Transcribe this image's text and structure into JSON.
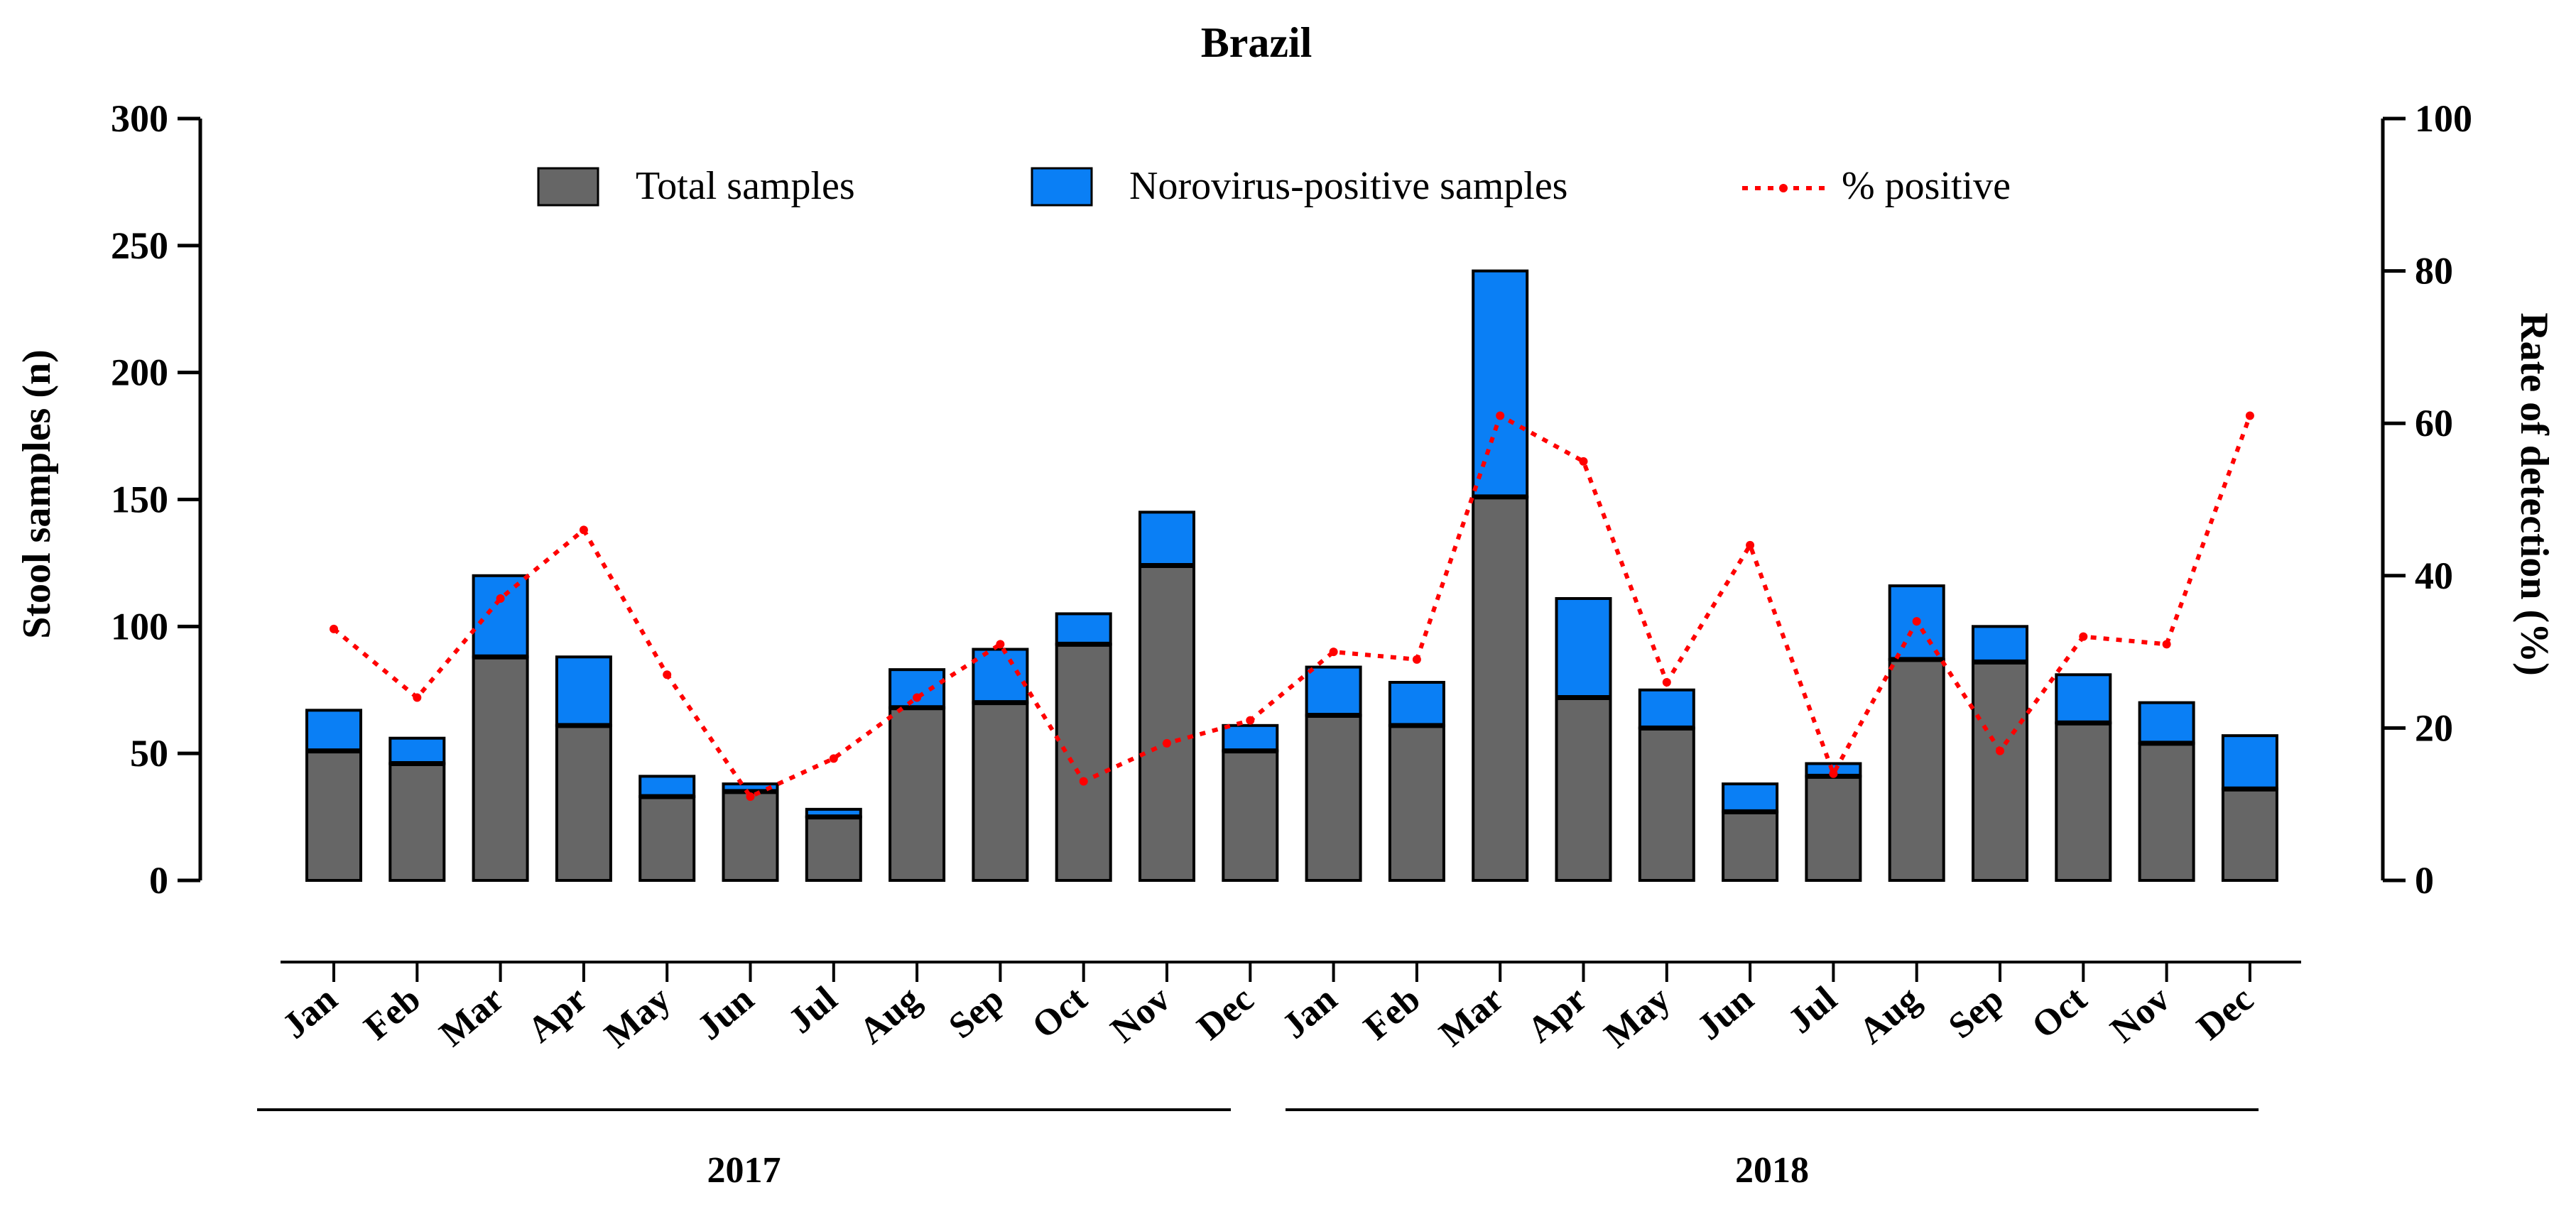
{
  "colors": {
    "total": "#666666",
    "positive": "#0a7ff5",
    "percent": "#ff0000",
    "axis": "#000000"
  },
  "chart_data": {
    "type": "bar",
    "title": "Brazil",
    "ylabel": "Stool samples (n)",
    "y2label": "Rate of detection (%)",
    "ylim": [
      0,
      300
    ],
    "y2lim": [
      0,
      100
    ],
    "yticks": [
      0,
      50,
      100,
      150,
      200,
      250,
      300
    ],
    "y2ticks": [
      0,
      20,
      40,
      60,
      80,
      100
    ],
    "categories": [
      "Jan",
      "Feb",
      "Mar",
      "Apr",
      "May",
      "Jun",
      "Jul",
      "Aug",
      "Sep",
      "Oct",
      "Nov",
      "Dec",
      "Jan",
      "Feb",
      "Mar",
      "Apr",
      "May",
      "Jun",
      "Jul",
      "Aug",
      "Sep",
      "Oct",
      "Nov",
      "Dec"
    ],
    "groups": [
      {
        "label": "2017",
        "start": 0,
        "end": 11
      },
      {
        "label": "2018",
        "start": 12,
        "end": 23
      }
    ],
    "legend": {
      "placement": "top-center",
      "total": "Total samples",
      "positive": "Norovirus-positive samples",
      "percent": "% positive"
    },
    "series": [
      {
        "name": "Total samples",
        "values": [
          51,
          46,
          88,
          61,
          33,
          35,
          25,
          68,
          70,
          93,
          124,
          51,
          65,
          61,
          151,
          72,
          60,
          27,
          41,
          87,
          86,
          62,
          54,
          36
        ]
      },
      {
        "name": "Norovirus-positive samples",
        "values": [
          16,
          10,
          32,
          27,
          8,
          3,
          3,
          15,
          21,
          12,
          21,
          10,
          19,
          17,
          89,
          39,
          15,
          11,
          5,
          29,
          14,
          19,
          16,
          21
        ]
      },
      {
        "name": "% positive",
        "axis": "right",
        "values": [
          33,
          24,
          37,
          46,
          27,
          11,
          16,
          24,
          31,
          13,
          18,
          21,
          30,
          29,
          61,
          55,
          26,
          44,
          14,
          34,
          17,
          32,
          31,
          61
        ]
      }
    ]
  }
}
